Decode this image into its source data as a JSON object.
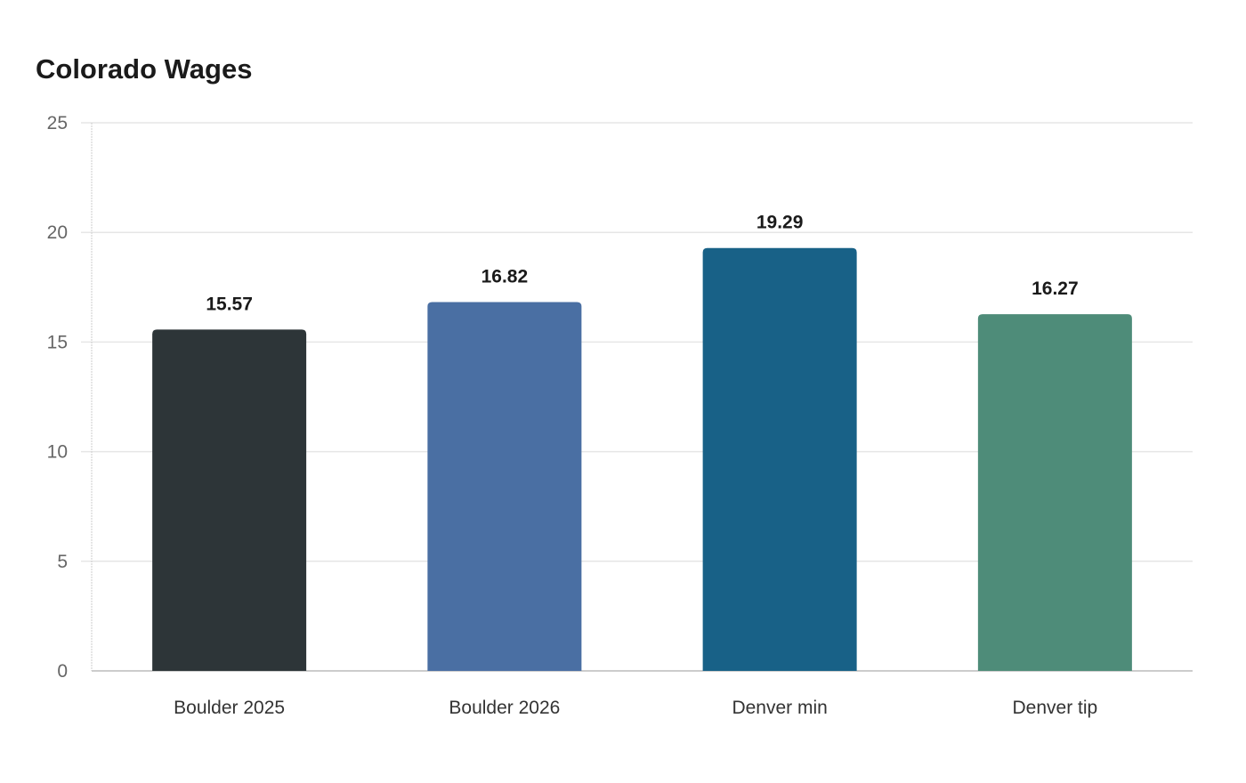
{
  "chart_data": {
    "type": "bar",
    "title": "Colorado Wages",
    "xlabel": "",
    "ylabel": "",
    "categories": [
      "Boulder 2025",
      "Boulder 2026",
      "Denver min",
      "Denver tip"
    ],
    "values": [
      15.57,
      16.82,
      19.29,
      16.27
    ],
    "value_labels": [
      "15.57",
      "16.82",
      "19.29",
      "16.27"
    ],
    "colors": [
      "#2d3538",
      "#4a6fa3",
      "#186187",
      "#4e8c79"
    ],
    "ylim": [
      0,
      25
    ],
    "yticks": [
      0,
      5,
      10,
      15,
      20,
      25
    ],
    "grid": true,
    "legend": "none"
  }
}
